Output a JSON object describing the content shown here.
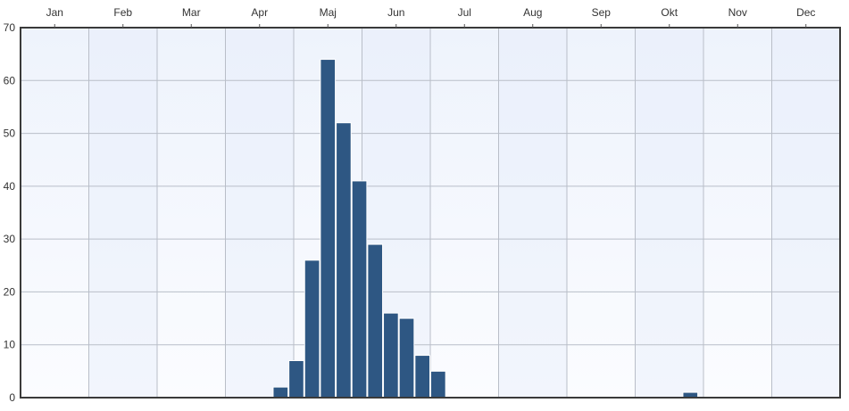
{
  "chart_data": {
    "type": "bar",
    "title": "",
    "xlabel": "",
    "ylabel": "",
    "ylim": [
      0,
      70
    ],
    "y_ticks": [
      "0",
      "10",
      "20",
      "30",
      "40",
      "50",
      "60",
      "70"
    ],
    "months": [
      "Jan",
      "Feb",
      "Mar",
      "Apr",
      "Maj",
      "Jun",
      "Jul",
      "Aug",
      "Sep",
      "Okt",
      "Nov",
      "Dec"
    ],
    "bin_width_weeks": 1,
    "bars": [
      {
        "week": 17,
        "value": 2
      },
      {
        "week": 18,
        "value": 7
      },
      {
        "week": 19,
        "value": 26
      },
      {
        "week": 20,
        "value": 64
      },
      {
        "week": 21,
        "value": 52
      },
      {
        "week": 22,
        "value": 41
      },
      {
        "week": 23,
        "value": 29
      },
      {
        "week": 24,
        "value": 16
      },
      {
        "week": 25,
        "value": 15
      },
      {
        "week": 26,
        "value": 8
      },
      {
        "week": 27,
        "value": 5
      },
      {
        "week": 43,
        "value": 1
      }
    ],
    "grid": true,
    "legend": "none",
    "colors": {
      "bar": "#2e5783",
      "background": "#f2f6fd"
    }
  }
}
